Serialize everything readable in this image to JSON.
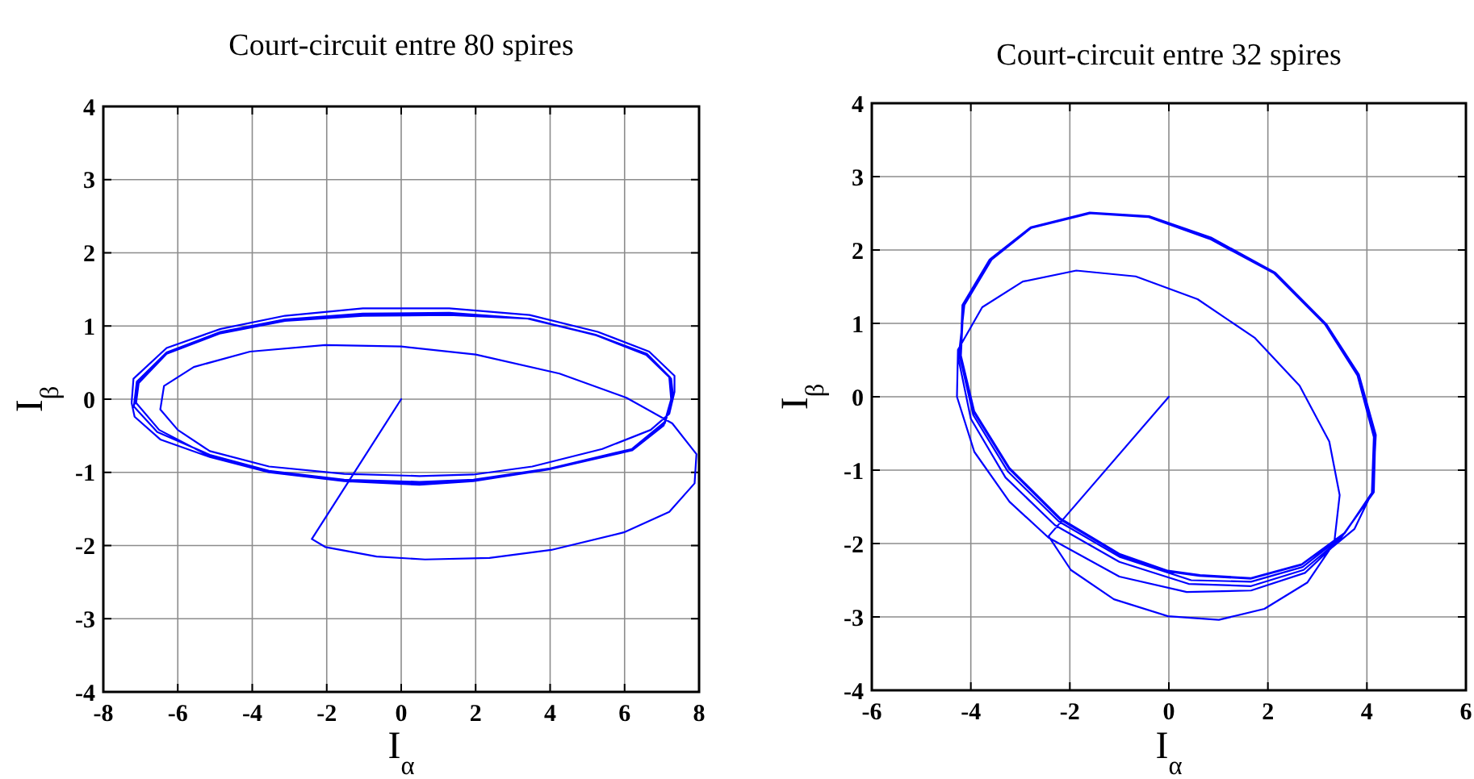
{
  "chart_data": [
    {
      "type": "line",
      "title": "Court-circuit entre 80 spires",
      "xlabel": "I$_{α}$",
      "ylabel": "I$_{β}$",
      "xlim": [
        -8,
        8
      ],
      "xticks": [
        -8,
        -6,
        -4,
        -2,
        0,
        2,
        4,
        6,
        8
      ],
      "ylim": [
        -4,
        4
      ],
      "yticks": [
        -4,
        -3,
        -2,
        -1,
        0,
        1,
        2,
        3,
        4
      ],
      "grid": true,
      "series": [
        {
          "color": "#0000ff",
          "x": [
            0,
            -2.4,
            -2.04,
            -0.66,
            0.64,
            2.37,
            4.03,
            5.98,
            7.2,
            7.88,
            7.93,
            7.28,
            6.05,
            4.25,
            2.0,
            0,
            -2.04,
            -4.06,
            -5.57,
            -6.37,
            -6.47,
            -6.0,
            -5.14,
            -3.55,
            -1.53,
            0.49,
            1.94,
            3.52,
            5.4,
            6.7,
            7.2,
            7.34,
            7.34,
            6.66,
            5.28,
            3.45,
            1.29,
            -1.03,
            -3.12,
            -4.85,
            -6.3,
            -7.19,
            -7.24,
            -7.16,
            -6.47,
            -5.14,
            -3.55,
            -1.53,
            0.49,
            1.94,
            3.96,
            6.2,
            7.05,
            7.25,
            7.2,
            6.55,
            5.2,
            3.4,
            1.29,
            -1.03,
            -3.12,
            -4.85,
            -6.3,
            -7.1,
            -7.18,
            -6.55,
            -5.14,
            -3.55,
            -1.53,
            0.49,
            1.94,
            3.96,
            6.2,
            7.1,
            7.3,
            7.25,
            6.6,
            5.25,
            3.45,
            1.29,
            -1.03,
            -3.12,
            -4.85,
            -6.3,
            -7.05,
            -7.12,
            -6.5,
            -5.14,
            -3.55,
            -1.53,
            0.49,
            1.94,
            3.96,
            6.2,
            7.08,
            7.28,
            7.22,
            6.6,
            5.22,
            3.42,
            1.29,
            -1.03,
            -3.12,
            -4.85,
            -6.3,
            -7.08,
            -7.14
          ],
          "values": [
            0,
            -1.91,
            -2.02,
            -2.15,
            -2.19,
            -2.17,
            -2.06,
            -1.82,
            -1.54,
            -1.15,
            -0.75,
            -0.33,
            0.02,
            0.35,
            0.61,
            0.72,
            0.74,
            0.65,
            0.44,
            0.18,
            -0.14,
            -0.42,
            -0.71,
            -0.92,
            -1.02,
            -1.05,
            -1.03,
            -0.92,
            -0.68,
            -0.42,
            -0.2,
            0.1,
            0.32,
            0.65,
            0.92,
            1.15,
            1.24,
            1.24,
            1.14,
            0.96,
            0.7,
            0.28,
            -0.05,
            -0.24,
            -0.55,
            -0.79,
            -1.0,
            -1.12,
            -1.17,
            -1.12,
            -0.96,
            -0.7,
            -0.36,
            0.0,
            0.3,
            0.62,
            0.88,
            1.1,
            1.18,
            1.17,
            1.09,
            0.92,
            0.64,
            0.24,
            -0.1,
            -0.45,
            -0.76,
            -0.98,
            -1.1,
            -1.13,
            -1.1,
            -0.95,
            -0.68,
            -0.3,
            0.05,
            0.28,
            0.6,
            0.87,
            1.1,
            1.15,
            1.14,
            1.07,
            0.9,
            0.62,
            0.22,
            -0.05,
            -0.42,
            -0.78,
            -0.99,
            -1.11,
            -1.15,
            -1.11,
            -0.95,
            -0.7,
            -0.33,
            0.02,
            0.3,
            0.62,
            0.88,
            1.1,
            1.16,
            1.15,
            1.08,
            0.91,
            0.64,
            0.24,
            -0.06
          ]
        }
      ]
    },
    {
      "type": "line",
      "title": "Court-circuit entre 32 spires",
      "xlabel": "I$_{α}$",
      "ylabel": "I$_{β}$",
      "xlim": [
        -6,
        6
      ],
      "xticks": [
        -6,
        -4,
        -2,
        0,
        2,
        4,
        6
      ],
      "ylim": [
        -4,
        4
      ],
      "yticks": [
        -4,
        -3,
        -2,
        -1,
        0,
        1,
        2,
        3,
        4
      ],
      "grid": true,
      "series": [
        {
          "color": "#0000ff",
          "x": [
            0,
            -2.43,
            -1.98,
            -1.11,
            -0.02,
            1.01,
            1.93,
            2.8,
            3.34,
            3.45,
            3.24,
            2.64,
            1.74,
            0.58,
            -0.67,
            -1.87,
            -2.95,
            -3.77,
            -4.26,
            -4.28,
            -3.93,
            -3.22,
            -2.43,
            -1.0,
            0.36,
            1.66,
            2.75,
            3.3,
            3.75,
            4.12,
            4.18,
            3.84,
            3.19,
            2.16,
            0.86,
            -0.38,
            -1.58,
            -2.78,
            -3.58,
            -4.13,
            -4.25,
            -4.0,
            -3.3,
            -2.3,
            -1.0,
            0.4,
            1.66,
            2.72,
            3.45,
            4.14,
            4.17,
            3.83,
            3.18,
            2.15,
            0.85,
            -0.4,
            -1.6,
            -2.79,
            -3.6,
            -4.15,
            -4.22,
            -3.95,
            -3.25,
            -2.22,
            -1.0,
            0.45,
            1.66,
            2.7,
            3.5,
            4.13,
            4.16,
            3.83,
            3.18,
            2.15,
            0.85,
            -0.4,
            -1.6,
            -2.79,
            -3.6,
            -4.15,
            -4.2,
            -3.93,
            -3.22,
            -2.19,
            -1.0,
            -0.02,
            0.63,
            1.66,
            2.69,
            3.56,
            4.1,
            4.14,
            3.81,
            3.16,
            2.13,
            0.83,
            -0.42,
            -1.62,
            -2.8,
            -3.62,
            -4.17,
            -4.21,
            -3.94,
            -3.23,
            -2.2,
            -1.01,
            -0.03,
            0.62,
            1.65,
            2.68,
            3.55,
            4.12
          ],
          "values": [
            0,
            -1.9,
            -2.36,
            -2.76,
            -2.99,
            -3.04,
            -2.89,
            -2.53,
            -1.99,
            -1.34,
            -0.61,
            0.15,
            0.8,
            1.33,
            1.64,
            1.72,
            1.57,
            1.22,
            0.64,
            0,
            -0.75,
            -1.43,
            -1.92,
            -2.45,
            -2.66,
            -2.64,
            -2.4,
            -2.05,
            -1.8,
            -1.28,
            -0.52,
            0.3,
            0.98,
            1.68,
            2.16,
            2.45,
            2.5,
            2.3,
            1.87,
            1.25,
            0.52,
            -0.3,
            -1.1,
            -1.75,
            -2.25,
            -2.55,
            -2.58,
            -2.36,
            -1.95,
            -1.3,
            -0.54,
            0.31,
            0.99,
            1.69,
            2.17,
            2.46,
            2.51,
            2.31,
            1.88,
            1.26,
            0.54,
            -0.25,
            -1.02,
            -1.7,
            -2.18,
            -2.5,
            -2.52,
            -2.32,
            -1.9,
            -1.3,
            -0.53,
            0.31,
            0.99,
            1.69,
            2.17,
            2.46,
            2.51,
            2.31,
            1.88,
            1.26,
            0.56,
            -0.2,
            -0.97,
            -1.66,
            -2.14,
            -2.37,
            -2.43,
            -2.47,
            -2.28,
            -1.85,
            -1.31,
            -0.55,
            0.29,
            0.98,
            1.68,
            2.15,
            2.45,
            2.5,
            2.3,
            1.87,
            1.25,
            0.55,
            -0.21,
            -0.98,
            -1.67,
            -2.15,
            -2.38,
            -2.44,
            -2.48,
            -2.29,
            -1.86,
            -1.3
          ]
        }
      ]
    }
  ]
}
